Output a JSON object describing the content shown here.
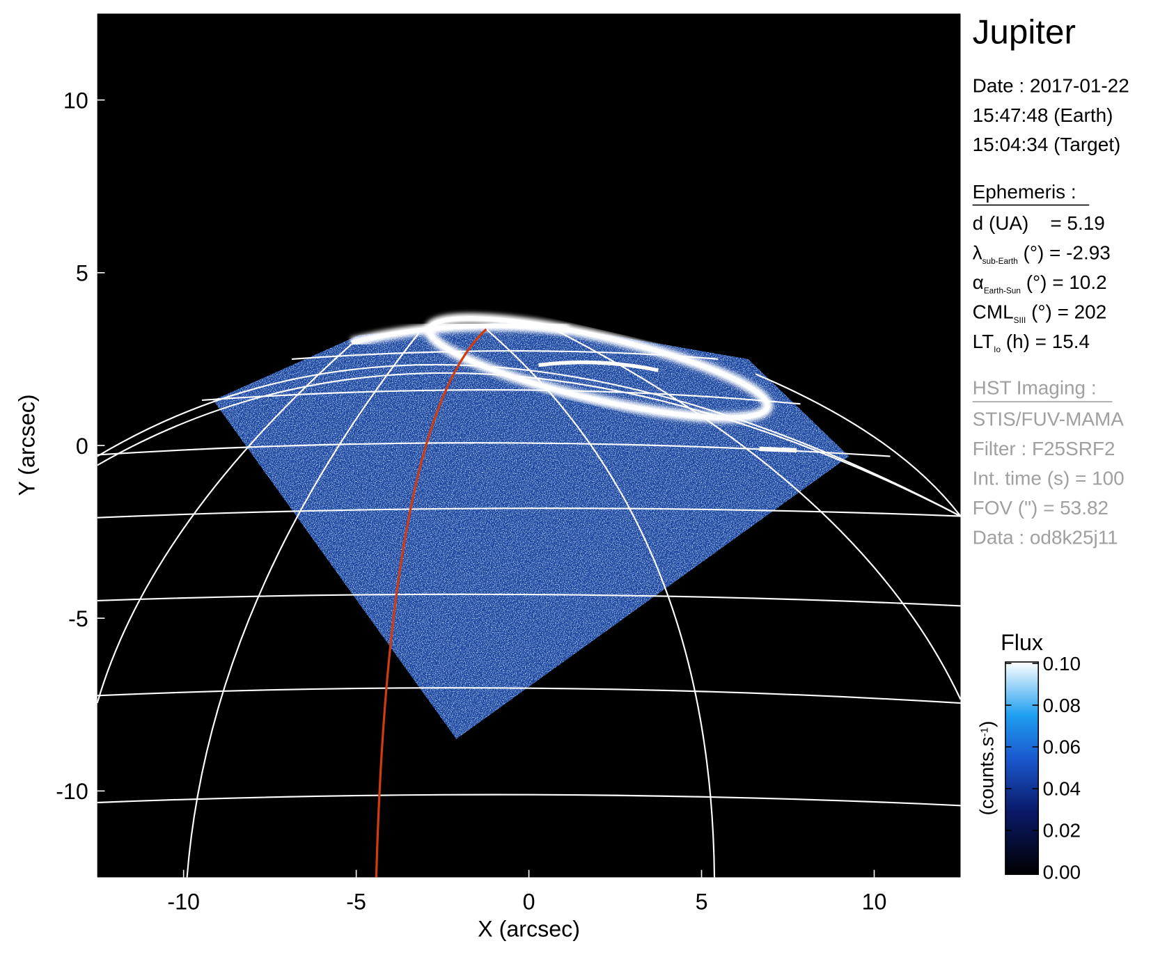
{
  "chart_data": {
    "type": "image",
    "title": "Jupiter",
    "x_label": "X (arcsec)",
    "y_label": "Y (arcsec)",
    "xlim": [
      -12.5,
      12.5
    ],
    "ylim": [
      -12.5,
      12.5
    ],
    "xticks": [
      -10,
      -5,
      0,
      5,
      10
    ],
    "yticks": [
      -10,
      -5,
      0,
      5,
      10
    ],
    "info": {
      "date": [
        "Date : 2017-01-22",
        "15:47:48 (Earth)",
        "15:04:34 (Target)"
      ],
      "ephemeris_title": "Ephemeris :",
      "ephemeris": [
        {
          "symbol": "d (UA)    = 5.19"
        },
        {
          "symbol": "λ",
          "sub": "sub-Earth",
          "rest": " (°) = -2.93"
        },
        {
          "symbol": "α",
          "sub": "Earth-Sun",
          "rest": " (°) = 10.2"
        },
        {
          "symbol": "CML",
          "sub": "SIII",
          "rest": " (°) = 202"
        },
        {
          "symbol": "LT",
          "sub": "Io",
          "rest": " (h) = 15.4"
        }
      ],
      "imaging_title": "HST Imaging :",
      "imaging": [
        "STIS/FUV-MAMA",
        "Filter : F25SRF2",
        "Int. time (s) = 100",
        "FOV (\") = 53.82",
        "Data : od8k25j11"
      ]
    },
    "colorbar": {
      "title": "Flux",
      "unit": "(counts.s",
      "unit_sup": "-1",
      "unit_end": ")",
      "lim": [
        0,
        0.1
      ],
      "ticks": [
        {
          "value": 0,
          "label": "0.00"
        },
        {
          "value": 0.02,
          "label": "0.02"
        },
        {
          "value": 0.04,
          "label": "0.04"
        },
        {
          "value": 0.06,
          "label": "0.06"
        },
        {
          "value": 0.08,
          "label": "0.08"
        },
        {
          "value": 0.1,
          "label": "0.10"
        }
      ]
    }
  }
}
